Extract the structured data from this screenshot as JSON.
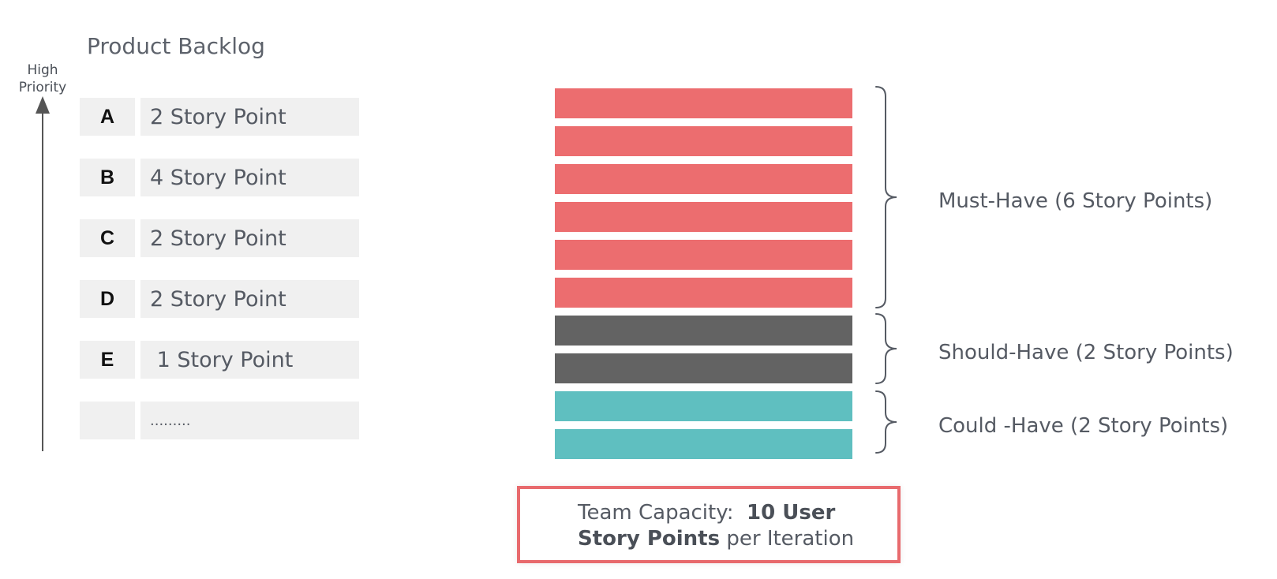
{
  "backlog": {
    "title": "Product Backlog",
    "priority_label_line1": "High",
    "priority_label_line2": "Priority",
    "rows": [
      {
        "letter": "A",
        "points": "2 Story Point"
      },
      {
        "letter": "B",
        "points": "4 Story Point"
      },
      {
        "letter": "C",
        "points": "2 Story Point"
      },
      {
        "letter": "D",
        "points": "2 Story Point"
      },
      {
        "letter": "E",
        "points": " 1 Story Point"
      },
      {
        "letter": "",
        "points": "........."
      }
    ]
  },
  "groups": {
    "must": {
      "label": "Must-Have (6 Story Points)",
      "color": "#ec6d6f",
      "count": 6
    },
    "should": {
      "label": "Should-Have (2 Story Points)",
      "color": "#636363",
      "count": 2
    },
    "could": {
      "label": "Could -Have (2 Story Points)",
      "color": "#5fbfc0",
      "count": 2
    }
  },
  "capacity": {
    "prefix": "Team Capacity:  ",
    "bold1": "10 User",
    "bold2": "Story Points",
    "suffix": " per Iteration",
    "border_color": "#e86a6d"
  },
  "colors": {
    "text": "#555a63",
    "row_bg": "#f0f0f0",
    "arrow": "#555555"
  }
}
